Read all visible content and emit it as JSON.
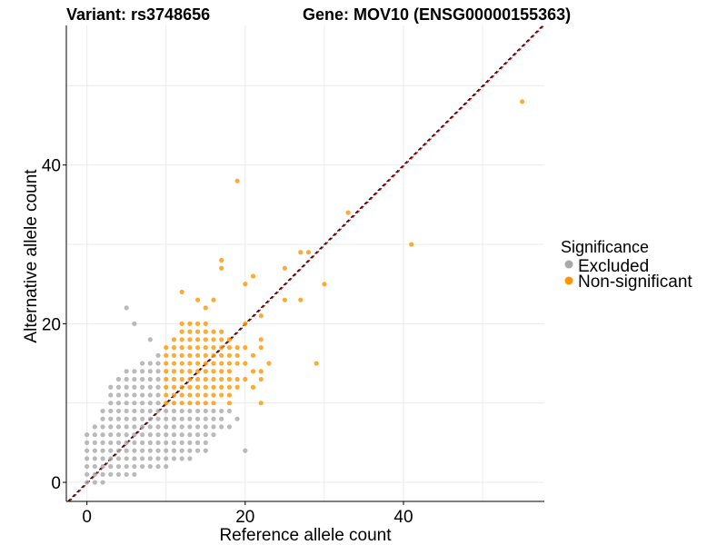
{
  "chart_data": {
    "type": "scatter",
    "title_left": "Variant: rs3748656",
    "title_right": "Gene: MOV10 (ENSG00000155363)",
    "xlabel": "Reference allele count",
    "ylabel": "Alternative allele count",
    "xlim": [
      -2.6,
      57.8
    ],
    "ylim": [
      -2.4,
      57.6
    ],
    "x_ticks": [
      0,
      20,
      40
    ],
    "y_ticks": [
      0,
      20,
      40
    ],
    "grid": true,
    "legend": {
      "title": "Significance",
      "position": "right",
      "entries": [
        {
          "label": "Excluded",
          "color": "#A9A9A9"
        },
        {
          "label": "Non-significant",
          "color": "#FF9500"
        }
      ]
    },
    "reference_lines": [
      {
        "style": "dashed",
        "color": "#000000",
        "slope": 1,
        "intercept": 0
      },
      {
        "style": "dashed",
        "color": "#CC0000",
        "slope": 1,
        "intercept": 0
      }
    ],
    "series": [
      {
        "name": "Excluded",
        "color": "#A9A9A9",
        "points": [
          [
            0,
            0
          ],
          [
            0,
            1
          ],
          [
            0,
            2
          ],
          [
            0,
            3
          ],
          [
            0,
            4
          ],
          [
            0,
            5
          ],
          [
            0,
            6
          ],
          [
            1,
            0
          ],
          [
            1,
            1
          ],
          [
            1,
            2
          ],
          [
            1,
            3
          ],
          [
            1,
            4
          ],
          [
            1,
            5
          ],
          [
            1,
            6
          ],
          [
            1,
            7
          ],
          [
            2,
            0
          ],
          [
            2,
            1
          ],
          [
            2,
            2
          ],
          [
            2,
            3
          ],
          [
            2,
            4
          ],
          [
            2,
            5
          ],
          [
            2,
            6
          ],
          [
            2,
            7
          ],
          [
            2,
            8
          ],
          [
            2,
            9
          ],
          [
            3,
            1
          ],
          [
            3,
            2
          ],
          [
            3,
            3
          ],
          [
            3,
            4
          ],
          [
            3,
            5
          ],
          [
            3,
            6
          ],
          [
            3,
            7
          ],
          [
            3,
            8
          ],
          [
            3,
            9
          ],
          [
            3,
            10
          ],
          [
            3,
            11
          ],
          [
            3,
            12
          ],
          [
            4,
            1
          ],
          [
            4,
            2
          ],
          [
            4,
            3
          ],
          [
            4,
            4
          ],
          [
            4,
            5
          ],
          [
            4,
            6
          ],
          [
            4,
            7
          ],
          [
            4,
            8
          ],
          [
            4,
            9
          ],
          [
            4,
            10
          ],
          [
            4,
            11
          ],
          [
            4,
            12
          ],
          [
            4,
            13
          ],
          [
            5,
            1
          ],
          [
            5,
            2
          ],
          [
            5,
            3
          ],
          [
            5,
            4
          ],
          [
            5,
            5
          ],
          [
            5,
            6
          ],
          [
            5,
            7
          ],
          [
            5,
            8
          ],
          [
            5,
            9
          ],
          [
            5,
            10
          ],
          [
            5,
            11
          ],
          [
            5,
            12
          ],
          [
            5,
            13
          ],
          [
            5,
            14
          ],
          [
            5,
            22
          ],
          [
            6,
            1
          ],
          [
            6,
            2
          ],
          [
            6,
            3
          ],
          [
            6,
            4
          ],
          [
            6,
            5
          ],
          [
            6,
            6
          ],
          [
            6,
            7
          ],
          [
            6,
            8
          ],
          [
            6,
            9
          ],
          [
            6,
            10
          ],
          [
            6,
            11
          ],
          [
            6,
            12
          ],
          [
            6,
            13
          ],
          [
            6,
            14
          ],
          [
            6,
            20
          ],
          [
            7,
            2
          ],
          [
            7,
            3
          ],
          [
            7,
            4
          ],
          [
            7,
            5
          ],
          [
            7,
            6
          ],
          [
            7,
            7
          ],
          [
            7,
            8
          ],
          [
            7,
            9
          ],
          [
            7,
            10
          ],
          [
            7,
            11
          ],
          [
            7,
            12
          ],
          [
            7,
            13
          ],
          [
            7,
            14
          ],
          [
            7,
            15
          ],
          [
            8,
            2
          ],
          [
            8,
            3
          ],
          [
            8,
            4
          ],
          [
            8,
            5
          ],
          [
            8,
            6
          ],
          [
            8,
            7
          ],
          [
            8,
            8
          ],
          [
            8,
            9
          ],
          [
            8,
            10
          ],
          [
            8,
            11
          ],
          [
            8,
            12
          ],
          [
            8,
            13
          ],
          [
            8,
            14
          ],
          [
            8,
            15
          ],
          [
            8,
            18
          ],
          [
            9,
            2
          ],
          [
            9,
            3
          ],
          [
            9,
            4
          ],
          [
            9,
            5
          ],
          [
            9,
            6
          ],
          [
            9,
            7
          ],
          [
            9,
            8
          ],
          [
            9,
            9
          ],
          [
            9,
            10
          ],
          [
            9,
            11
          ],
          [
            9,
            12
          ],
          [
            9,
            13
          ],
          [
            9,
            14
          ],
          [
            9,
            15
          ],
          [
            9,
            16
          ],
          [
            10,
            2
          ],
          [
            10,
            3
          ],
          [
            10,
            4
          ],
          [
            10,
            5
          ],
          [
            10,
            6
          ],
          [
            10,
            7
          ],
          [
            10,
            8
          ],
          [
            10,
            9
          ],
          [
            11,
            3
          ],
          [
            11,
            4
          ],
          [
            11,
            5
          ],
          [
            11,
            6
          ],
          [
            11,
            7
          ],
          [
            11,
            8
          ],
          [
            11,
            9
          ],
          [
            12,
            3
          ],
          [
            12,
            4
          ],
          [
            12,
            5
          ],
          [
            12,
            6
          ],
          [
            12,
            7
          ],
          [
            12,
            8
          ],
          [
            12,
            9
          ],
          [
            13,
            3
          ],
          [
            13,
            4
          ],
          [
            13,
            5
          ],
          [
            13,
            6
          ],
          [
            13,
            7
          ],
          [
            13,
            8
          ],
          [
            13,
            9
          ],
          [
            14,
            4
          ],
          [
            14,
            5
          ],
          [
            14,
            6
          ],
          [
            14,
            7
          ],
          [
            14,
            8
          ],
          [
            14,
            9
          ],
          [
            15,
            4
          ],
          [
            15,
            5
          ],
          [
            15,
            6
          ],
          [
            15,
            7
          ],
          [
            15,
            8
          ],
          [
            15,
            9
          ],
          [
            16,
            6
          ],
          [
            16,
            7
          ],
          [
            16,
            8
          ],
          [
            16,
            9
          ],
          [
            17,
            7
          ],
          [
            17,
            8
          ],
          [
            17,
            9
          ],
          [
            18,
            7
          ],
          [
            18,
            9
          ],
          [
            19,
            8
          ],
          [
            20,
            4
          ]
        ]
      },
      {
        "name": "Non-significant",
        "color": "#FF9500",
        "points": [
          [
            10,
            10
          ],
          [
            10,
            11
          ],
          [
            10,
            12
          ],
          [
            10,
            13
          ],
          [
            10,
            14
          ],
          [
            10,
            15
          ],
          [
            10,
            16
          ],
          [
            10,
            17
          ],
          [
            11,
            10
          ],
          [
            11,
            11
          ],
          [
            11,
            12
          ],
          [
            11,
            13
          ],
          [
            11,
            14
          ],
          [
            11,
            15
          ],
          [
            11,
            16
          ],
          [
            11,
            17
          ],
          [
            11,
            18
          ],
          [
            12,
            10
          ],
          [
            12,
            11
          ],
          [
            12,
            12
          ],
          [
            12,
            13
          ],
          [
            12,
            14
          ],
          [
            12,
            15
          ],
          [
            12,
            16
          ],
          [
            12,
            17
          ],
          [
            12,
            18
          ],
          [
            12,
            19
          ],
          [
            12,
            20
          ],
          [
            12,
            24
          ],
          [
            13,
            10
          ],
          [
            13,
            11
          ],
          [
            13,
            12
          ],
          [
            13,
            13
          ],
          [
            13,
            14
          ],
          [
            13,
            15
          ],
          [
            13,
            16
          ],
          [
            13,
            17
          ],
          [
            13,
            18
          ],
          [
            13,
            19
          ],
          [
            13,
            20
          ],
          [
            14,
            10
          ],
          [
            14,
            11
          ],
          [
            14,
            12
          ],
          [
            14,
            13
          ],
          [
            14,
            14
          ],
          [
            14,
            15
          ],
          [
            14,
            16
          ],
          [
            14,
            17
          ],
          [
            14,
            18
          ],
          [
            14,
            19
          ],
          [
            14,
            20
          ],
          [
            14,
            23
          ],
          [
            15,
            10
          ],
          [
            15,
            11
          ],
          [
            15,
            12
          ],
          [
            15,
            13
          ],
          [
            15,
            14
          ],
          [
            15,
            15
          ],
          [
            15,
            16
          ],
          [
            15,
            17
          ],
          [
            15,
            18
          ],
          [
            15,
            19
          ],
          [
            15,
            20
          ],
          [
            15,
            22
          ],
          [
            16,
            10
          ],
          [
            16,
            11
          ],
          [
            16,
            12
          ],
          [
            16,
            13
          ],
          [
            16,
            14
          ],
          [
            16,
            15
          ],
          [
            16,
            16
          ],
          [
            16,
            17
          ],
          [
            16,
            18
          ],
          [
            16,
            19
          ],
          [
            16,
            23
          ],
          [
            17,
            11
          ],
          [
            17,
            12
          ],
          [
            17,
            13
          ],
          [
            17,
            14
          ],
          [
            17,
            15
          ],
          [
            17,
            16
          ],
          [
            17,
            17
          ],
          [
            17,
            18
          ],
          [
            17,
            19
          ],
          [
            17,
            27
          ],
          [
            17,
            28
          ],
          [
            18,
            10
          ],
          [
            18,
            11
          ],
          [
            18,
            12
          ],
          [
            18,
            13
          ],
          [
            18,
            14
          ],
          [
            18,
            15
          ],
          [
            18,
            16
          ],
          [
            18,
            17
          ],
          [
            18,
            18
          ],
          [
            19,
            12
          ],
          [
            19,
            13
          ],
          [
            19,
            15
          ],
          [
            19,
            16
          ],
          [
            19,
            17
          ],
          [
            19,
            38
          ],
          [
            20,
            13
          ],
          [
            20,
            15
          ],
          [
            20,
            17
          ],
          [
            20,
            20
          ],
          [
            20,
            25
          ],
          [
            21,
            12
          ],
          [
            21,
            14
          ],
          [
            21,
            16
          ],
          [
            21,
            26
          ],
          [
            22,
            10
          ],
          [
            22,
            13
          ],
          [
            22,
            14
          ],
          [
            22,
            17
          ],
          [
            22,
            18
          ],
          [
            22,
            21
          ],
          [
            23,
            15
          ],
          [
            25,
            23
          ],
          [
            25,
            27
          ],
          [
            27,
            23
          ],
          [
            27,
            29
          ],
          [
            28,
            29
          ],
          [
            29,
            15
          ],
          [
            30,
            25
          ],
          [
            33,
            34
          ],
          [
            41,
            30
          ],
          [
            55,
            48
          ]
        ]
      }
    ]
  }
}
